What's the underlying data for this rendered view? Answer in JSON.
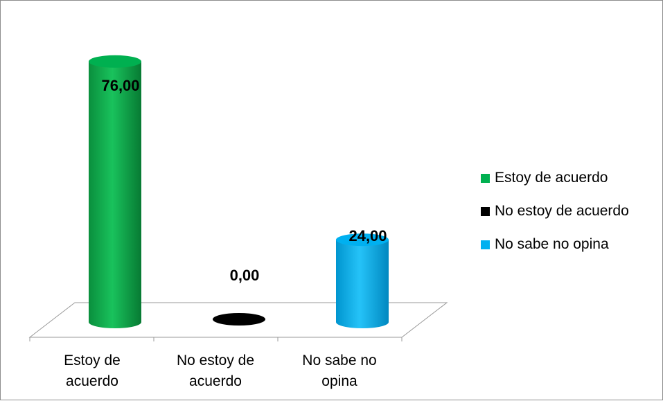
{
  "chart_data": {
    "type": "bar",
    "categories": [
      "Estoy de\nacuerdo",
      "No estoy de\nacuerdo",
      "No sabe no\nopina"
    ],
    "values": [
      76.0,
      0.0,
      24.0
    ],
    "value_labels": [
      "76,00",
      "0,00",
      "24,00"
    ],
    "ylim": [
      0,
      100
    ],
    "series": [
      {
        "name": "Estoy de acuerdo",
        "color": "#00b050"
      },
      {
        "name": "No estoy de acuerdo",
        "color": "#000000"
      },
      {
        "name": "No sabe no opina",
        "color": "#00b0f0"
      }
    ],
    "legend_position": "right",
    "grid": false,
    "shape": "cylinder",
    "three_d": true
  }
}
